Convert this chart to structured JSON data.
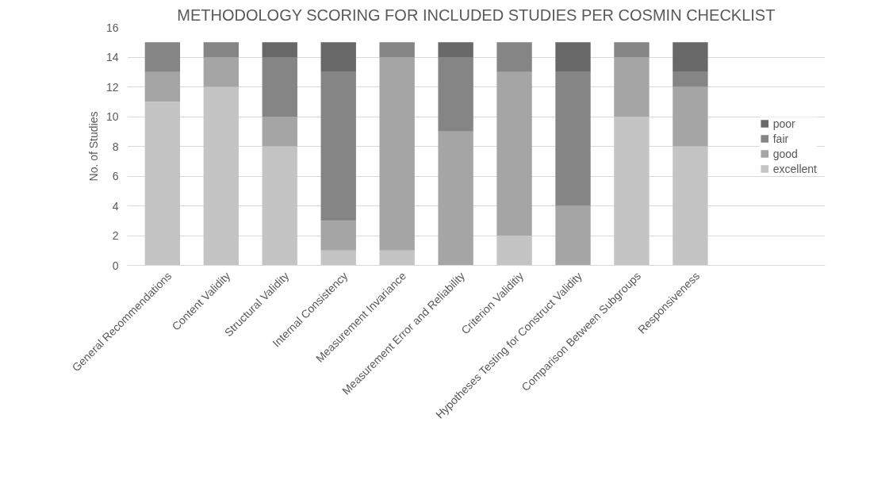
{
  "chart_data": {
    "type": "bar",
    "stacked": true,
    "title": "METHODOLOGY SCORING FOR INCLUDED STUDIES PER COSMIN CHECKLIST",
    "ylabel": "No. of Studies",
    "categories": [
      "General Recommendations",
      "Content Validity",
      "Structural Validity",
      "Internal Consistency",
      "Measurement Invariance",
      "Measurement Error and Reliability",
      "Criterion Validitiy",
      "Hypotheses Testing for Construct Validity",
      "Comparison Between Subgroups",
      "Responsiveness"
    ],
    "series": [
      {
        "name": "excellent",
        "color": "#c4c4c4",
        "values": [
          11,
          12,
          8,
          1,
          1,
          0,
          2,
          0,
          10,
          8
        ]
      },
      {
        "name": "good",
        "color": "#a5a5a5",
        "values": [
          2,
          2,
          2,
          2,
          13,
          9,
          11,
          4,
          4,
          4
        ]
      },
      {
        "name": "fair",
        "color": "#858585",
        "values": [
          2,
          1,
          4,
          10,
          1,
          5,
          2,
          9,
          1,
          1
        ]
      },
      {
        "name": "poor",
        "color": "#686868",
        "values": [
          0,
          0,
          1,
          2,
          0,
          1,
          0,
          2,
          0,
          2
        ]
      }
    ],
    "ylim": [
      0,
      16
    ],
    "yticks": [
      0,
      2,
      4,
      6,
      8,
      10,
      12,
      14,
      16
    ],
    "grid": "y",
    "legend": "right"
  }
}
